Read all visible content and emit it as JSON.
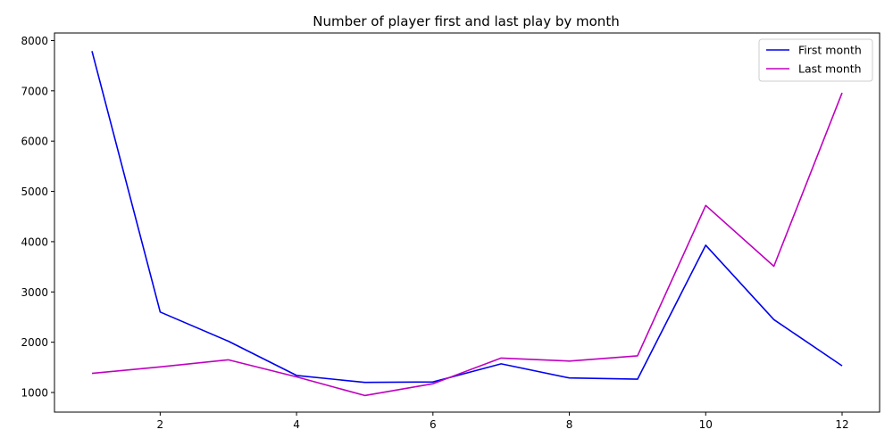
{
  "chart_data": {
    "type": "line",
    "title": "Number of player first and last play by month",
    "xlabel": "",
    "ylabel": "",
    "x": [
      1,
      2,
      3,
      4,
      5,
      6,
      7,
      8,
      9,
      10,
      11,
      12
    ],
    "xlim": [
      0.45,
      12.55
    ],
    "ylim": [
      610,
      8150
    ],
    "xticks": [
      2,
      4,
      6,
      8,
      10,
      12
    ],
    "yticks": [
      1000,
      2000,
      3000,
      4000,
      5000,
      6000,
      7000,
      8000
    ],
    "grid": false,
    "legend_position": "top-right",
    "series": [
      {
        "name": "First month",
        "color": "#0000ee",
        "values": [
          7790,
          2600,
          2020,
          1340,
          1200,
          1210,
          1570,
          1290,
          1265,
          3930,
          2450,
          1530
        ]
      },
      {
        "name": "Last month",
        "color": "#bf00bf",
        "values": [
          1380,
          1510,
          1650,
          1310,
          940,
          1175,
          1685,
          1625,
          1730,
          4720,
          3510,
          6960
        ]
      }
    ]
  }
}
